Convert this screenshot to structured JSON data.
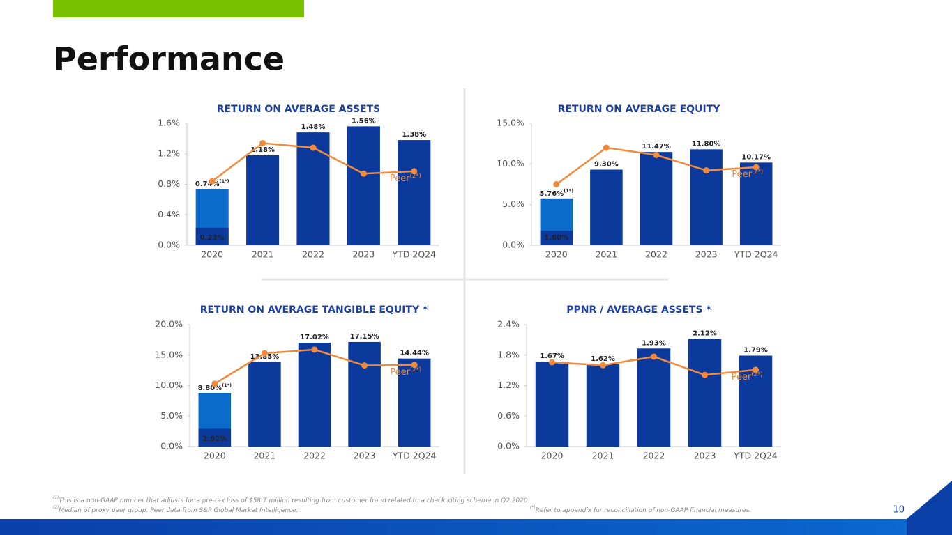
{
  "header": {
    "title": "Performance"
  },
  "chart_data": [
    {
      "type": "bar",
      "title": "RETURN ON AVERAGE ASSETS",
      "categories": [
        "2020",
        "2021",
        "2022",
        "2023",
        "YTD 2Q24"
      ],
      "series": [
        {
          "color": "#0b3a9c",
          "values": [
            0.23,
            1.18,
            1.48,
            1.56,
            1.38
          ],
          "value_labels": [
            "0.23%",
            "1.18%",
            "1.48%",
            "1.56%",
            "1.38%"
          ]
        },
        {
          "color": "#0b6bcb",
          "values": [
            0.74,
            null,
            null,
            null,
            null
          ],
          "value_labels": [
            "0.74%",
            null,
            null,
            null,
            null
          ],
          "note": "(1*)"
        },
        {
          "name": "Peer",
          "note": "(2*)",
          "type": "line",
          "color": "#f08a3c",
          "values": [
            0.84,
            1.34,
            1.28,
            0.94,
            0.97
          ]
        }
      ],
      "ylim": [
        0,
        1.6
      ],
      "yticks": [
        {
          "value": 0,
          "label": "0.0%"
        },
        {
          "value": 0.4,
          "label": "0.4%"
        },
        {
          "value": 0.8,
          "label": "0.8%"
        },
        {
          "value": 1.2,
          "label": "1.2%"
        },
        {
          "value": 1.6,
          "label": "1.6%"
        }
      ]
    },
    {
      "type": "bar",
      "title": "RETURN ON AVERAGE EQUITY",
      "categories": [
        "2020",
        "2021",
        "2022",
        "2023",
        "YTD 2Q24"
      ],
      "series": [
        {
          "color": "#0b3a9c",
          "values": [
            1.8,
            9.3,
            11.47,
            11.8,
            10.17
          ],
          "value_labels": [
            "1.80%",
            "9.30%",
            "11.47%",
            "11.80%",
            "10.17%"
          ]
        },
        {
          "color": "#0b6bcb",
          "values": [
            5.76,
            null,
            null,
            null,
            null
          ],
          "value_labels": [
            "5.76%",
            null,
            null,
            null,
            null
          ],
          "note": "(1*)"
        },
        {
          "name": "Peer",
          "note": "(2*)",
          "type": "line",
          "color": "#f08a3c",
          "values": [
            7.5,
            12.0,
            11.1,
            9.2,
            9.6
          ]
        }
      ],
      "ylim": [
        0,
        15
      ],
      "yticks": [
        {
          "value": 0,
          "label": "0.0%"
        },
        {
          "value": 5,
          "label": "5.0%"
        },
        {
          "value": 10,
          "label": "10.0%"
        },
        {
          "value": 15,
          "label": "15.0%"
        }
      ]
    },
    {
      "type": "bar",
      "title": "RETURN ON AVERAGE TANGIBLE EQUITY *",
      "categories": [
        "2020",
        "2021",
        "2022",
        "2023",
        "YTD 2Q24"
      ],
      "series": [
        {
          "color": "#0b3a9c",
          "values": [
            2.92,
            13.85,
            17.02,
            17.15,
            14.44
          ],
          "value_labels": [
            "2.92%",
            "13.85%",
            "17.02%",
            "17.15%",
            "14.44%"
          ]
        },
        {
          "color": "#0b6bcb",
          "values": [
            8.8,
            null,
            null,
            null,
            null
          ],
          "value_labels": [
            "8.80%",
            null,
            null,
            null,
            null
          ],
          "note": "(1*)"
        },
        {
          "name": "Peer",
          "note": "(2*)",
          "type": "line",
          "color": "#f08a3c",
          "values": [
            10.3,
            15.3,
            15.9,
            13.3,
            13.4
          ]
        }
      ],
      "ylim": [
        0,
        20
      ],
      "yticks": [
        {
          "value": 0,
          "label": "0.0%"
        },
        {
          "value": 5,
          "label": "5.0%"
        },
        {
          "value": 10,
          "label": "10.0%"
        },
        {
          "value": 15,
          "label": "15.0%"
        },
        {
          "value": 20,
          "label": "20.0%"
        }
      ]
    },
    {
      "type": "bar",
      "title": "PPNR / AVERAGE ASSETS *",
      "categories": [
        "2020",
        "2021",
        "2022",
        "2023",
        "YTD 2Q24"
      ],
      "series": [
        {
          "color": "#0b3a9c",
          "values": [
            1.67,
            1.62,
            1.93,
            2.12,
            1.79
          ],
          "value_labels": [
            "1.67%",
            "1.62%",
            "1.93%",
            "2.12%",
            "1.79%"
          ]
        },
        {
          "name": "Peer",
          "note": "(2*)",
          "type": "line",
          "color": "#f08a3c",
          "values": [
            1.66,
            1.6,
            1.77,
            1.41,
            1.51
          ]
        }
      ],
      "ylim": [
        0,
        2.4
      ],
      "yticks": [
        {
          "value": 0,
          "label": "0.0%"
        },
        {
          "value": 0.6,
          "label": "0.6%"
        },
        {
          "value": 1.2,
          "label": "1.2%"
        },
        {
          "value": 1.8,
          "label": "1.8%"
        },
        {
          "value": 2.4,
          "label": "2.4%"
        }
      ]
    }
  ],
  "footnotes": [
    {
      "marker": "(1)",
      "text": "This is a non-GAAP number that adjusts for a pre-tax loss of $58.7 million resulting from customer fraud related to a check kiting scheme in Q2 2020."
    },
    {
      "marker": "(2)",
      "text": "Median of proxy peer group. Peer data from S&P Global Market Intelligence. ."
    },
    {
      "marker": "(*)",
      "text": "Refer to appendix for reconciliation of non-GAAP financial measures."
    }
  ],
  "page_number": "10"
}
